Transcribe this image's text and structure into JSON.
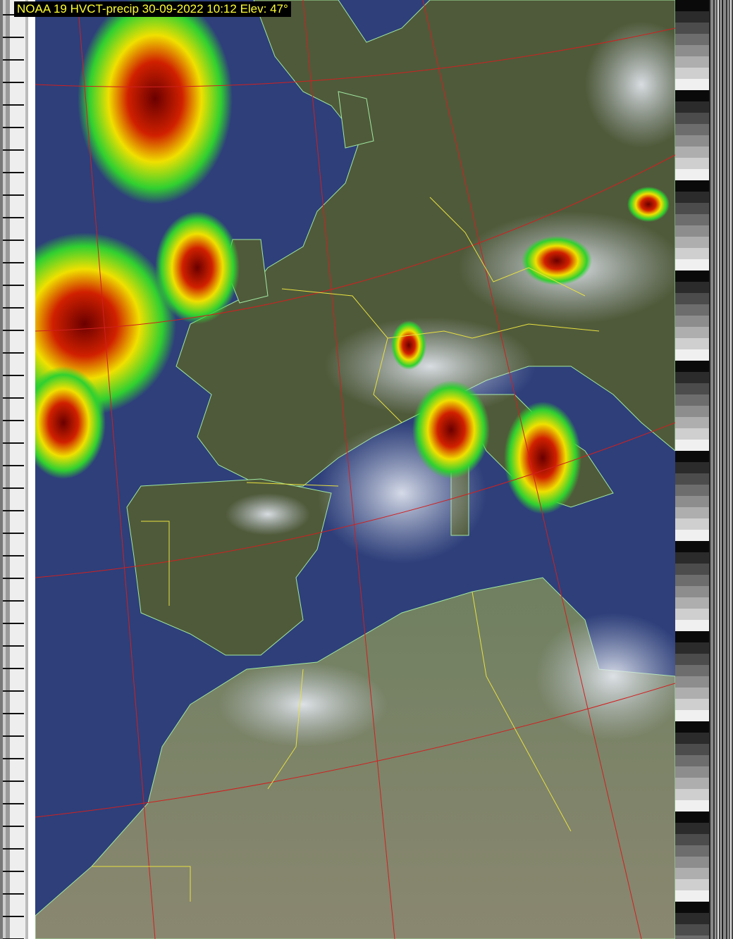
{
  "title": "NOAA 19 HVCT-precip 30-09-2022 10:12 Elev: 47°",
  "colors": {
    "title_text": "#ffff33",
    "title_bg": "#000000",
    "ocean": "#2e3f7a",
    "land": "#4f5a3a",
    "grid": "#d02020",
    "borders": "#e8e040",
    "coast": "#a0e8a0"
  }
}
